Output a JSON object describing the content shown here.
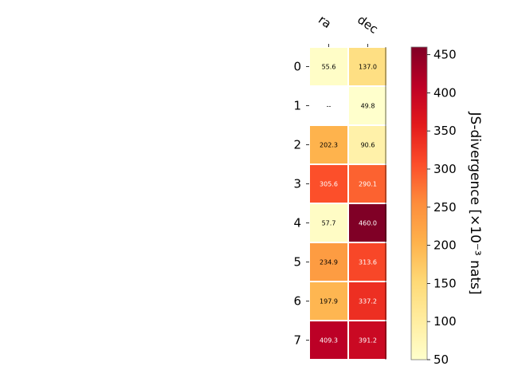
{
  "chart_data": {
    "type": "heatmap",
    "columns": [
      "ra",
      "dec"
    ],
    "rows": [
      "0",
      "1",
      "2",
      "3",
      "4",
      "5",
      "6",
      "7"
    ],
    "values": [
      [
        55.6,
        137.0
      ],
      [
        null,
        49.8
      ],
      [
        202.3,
        90.6
      ],
      [
        305.6,
        290.1
      ],
      [
        57.7,
        460.0
      ],
      [
        234.9,
        313.6
      ],
      [
        197.9,
        337.2
      ],
      [
        409.3,
        391.2
      ]
    ],
    "cell_labels": [
      [
        "55.6",
        "137.0"
      ],
      [
        "--",
        "49.8"
      ],
      [
        "202.3",
        "90.6"
      ],
      [
        "305.6",
        "290.1"
      ],
      [
        "57.7",
        "460.0"
      ],
      [
        "234.9",
        "313.6"
      ],
      [
        "197.9",
        "337.2"
      ],
      [
        "409.3",
        "391.2"
      ]
    ],
    "colorbar": {
      "label": "JS-divergence [×10⁻³ nats]",
      "range": [
        50,
        460
      ],
      "ticks": [
        50,
        100,
        150,
        200,
        250,
        300,
        350,
        400,
        450
      ],
      "colormap": "YlOrRd"
    },
    "grid": false
  }
}
